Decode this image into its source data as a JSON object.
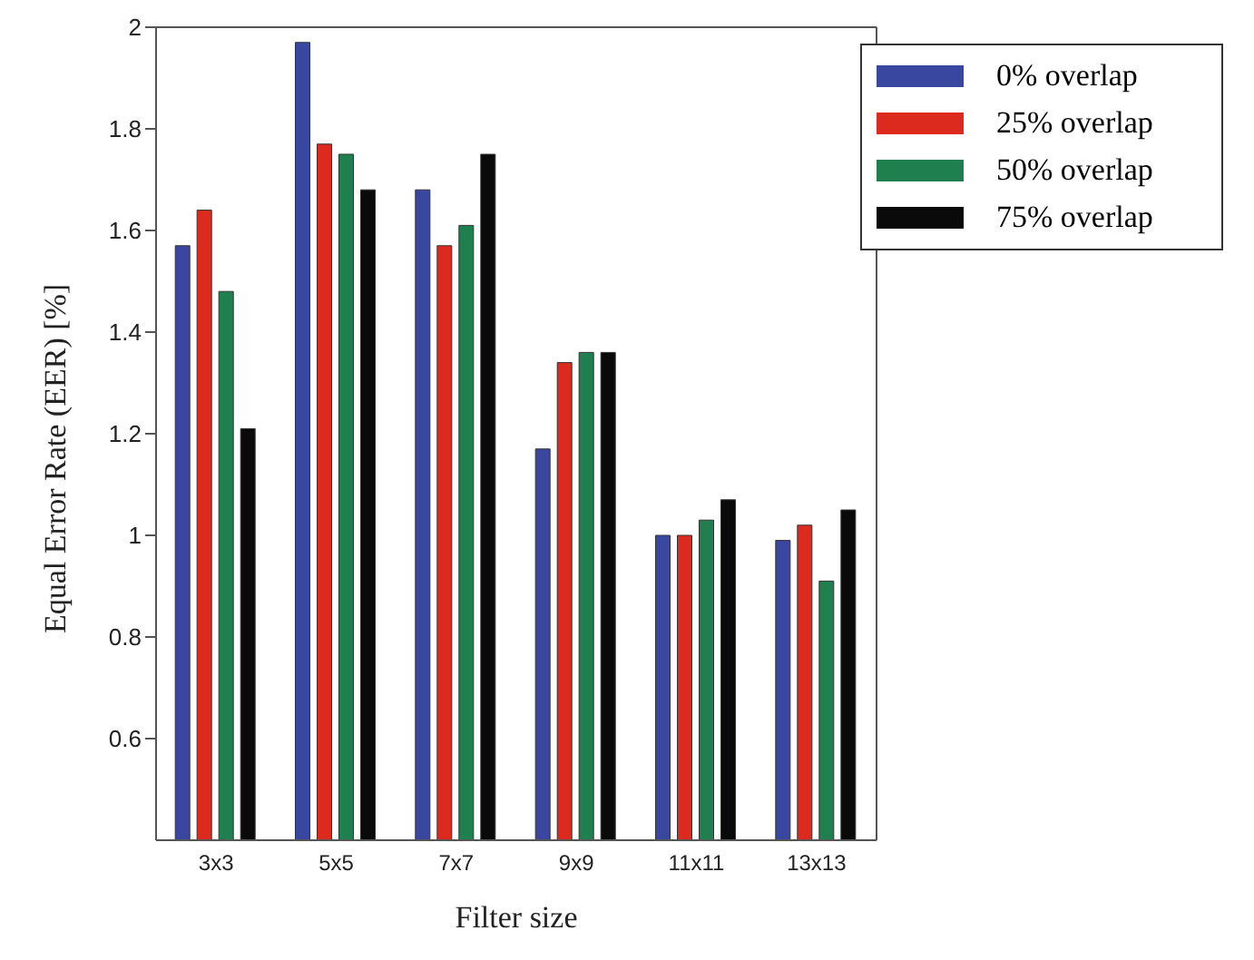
{
  "chart_data": {
    "type": "bar",
    "xlabel": "Filter size",
    "ylabel": "Equal Error Rate (EER) [%]",
    "categories": [
      "3x3",
      "5x5",
      "7x7",
      "9x9",
      "11x11",
      "13x13"
    ],
    "series": [
      {
        "name": "0% overlap",
        "color": "#3a47a0",
        "values": [
          1.57,
          1.97,
          1.68,
          1.17,
          1.0,
          0.99
        ]
      },
      {
        "name": "25% overlap",
        "color": "#dc2a1e",
        "values": [
          1.64,
          1.77,
          1.57,
          1.34,
          1.0,
          1.02
        ]
      },
      {
        "name": "50% overlap",
        "color": "#1f7f4f",
        "values": [
          1.48,
          1.75,
          1.61,
          1.36,
          1.03,
          0.91
        ]
      },
      {
        "name": "75% overlap",
        "color": "#0a0a0a",
        "values": [
          1.21,
          1.68,
          1.75,
          1.36,
          1.07,
          1.05
        ]
      }
    ],
    "ylim": [
      0.4,
      2
    ],
    "yticks": [
      0.6,
      0.8,
      1,
      1.2,
      1.4,
      1.6,
      1.8,
      2
    ],
    "grid": false,
    "legend": "top right"
  }
}
